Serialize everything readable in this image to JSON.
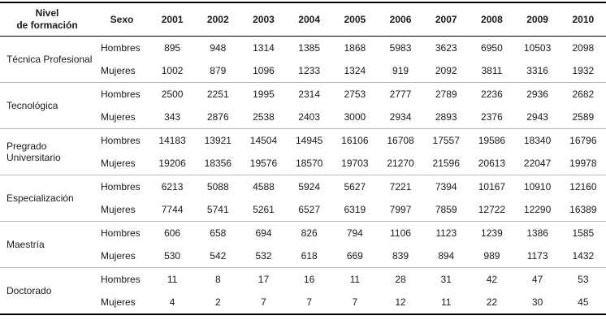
{
  "table": {
    "header": {
      "level": "Nivel\nde formación",
      "sex": "Sexo",
      "years": [
        "2001",
        "2002",
        "2003",
        "2004",
        "2005",
        "2006",
        "2007",
        "2008",
        "2009",
        "2010"
      ]
    },
    "groups": [
      {
        "level": "Técnica Profesional",
        "rows": [
          {
            "sex": "Hombres",
            "values": [
              895,
              948,
              1314,
              1385,
              1868,
              5983,
              3623,
              6950,
              10503,
              2098
            ]
          },
          {
            "sex": "Mujeres",
            "values": [
              1002,
              879,
              1096,
              1233,
              1324,
              919,
              2092,
              3811,
              3316,
              1932
            ]
          }
        ]
      },
      {
        "level": "Tecnológica",
        "rows": [
          {
            "sex": "Hombres",
            "values": [
              2500,
              2251,
              1995,
              2314,
              2753,
              2777,
              2789,
              2236,
              2936,
              2682
            ]
          },
          {
            "sex": "Mujeres",
            "values": [
              343,
              2876,
              2538,
              2403,
              3000,
              2934,
              2893,
              2376,
              2943,
              2589
            ]
          }
        ]
      },
      {
        "level": "Pregrado Universitario",
        "rows": [
          {
            "sex": "Hombres",
            "values": [
              14183,
              13921,
              14504,
              14945,
              16106,
              16708,
              17557,
              19586,
              18340,
              16796
            ]
          },
          {
            "sex": "Mujeres",
            "values": [
              19206,
              18356,
              19576,
              18570,
              19703,
              21270,
              21596,
              20613,
              22047,
              19978
            ]
          }
        ]
      },
      {
        "level": "Especialización",
        "rows": [
          {
            "sex": "Hombres",
            "values": [
              6213,
              5088,
              4588,
              5924,
              5627,
              7221,
              7394,
              10167,
              10910,
              12160
            ]
          },
          {
            "sex": "Mujeres",
            "values": [
              7744,
              5741,
              5261,
              6527,
              6319,
              7997,
              7859,
              12722,
              12290,
              16389
            ]
          }
        ]
      },
      {
        "level": "Maestría",
        "rows": [
          {
            "sex": "Hombres",
            "values": [
              606,
              658,
              694,
              826,
              794,
              1106,
              1123,
              1239,
              1386,
              1585
            ]
          },
          {
            "sex": "Mujeres",
            "values": [
              530,
              542,
              532,
              618,
              669,
              839,
              894,
              989,
              1173,
              1432
            ]
          }
        ]
      },
      {
        "level": "Doctorado",
        "rows": [
          {
            "sex": "Hombres",
            "values": [
              11,
              8,
              17,
              16,
              11,
              28,
              31,
              42,
              47,
              53
            ]
          },
          {
            "sex": "Mujeres",
            "values": [
              4,
              2,
              7,
              7,
              7,
              12,
              11,
              22,
              30,
              45
            ]
          }
        ]
      }
    ]
  },
  "chart_data": {
    "type": "table",
    "note": "Graduates by education level, sex and year (2001-2010); same values as table.groups"
  },
  "colors": {
    "rule_black": "#000000",
    "group_separator": "#b8b8b8",
    "text": "#1a1a1a",
    "background": "#ffffff"
  }
}
